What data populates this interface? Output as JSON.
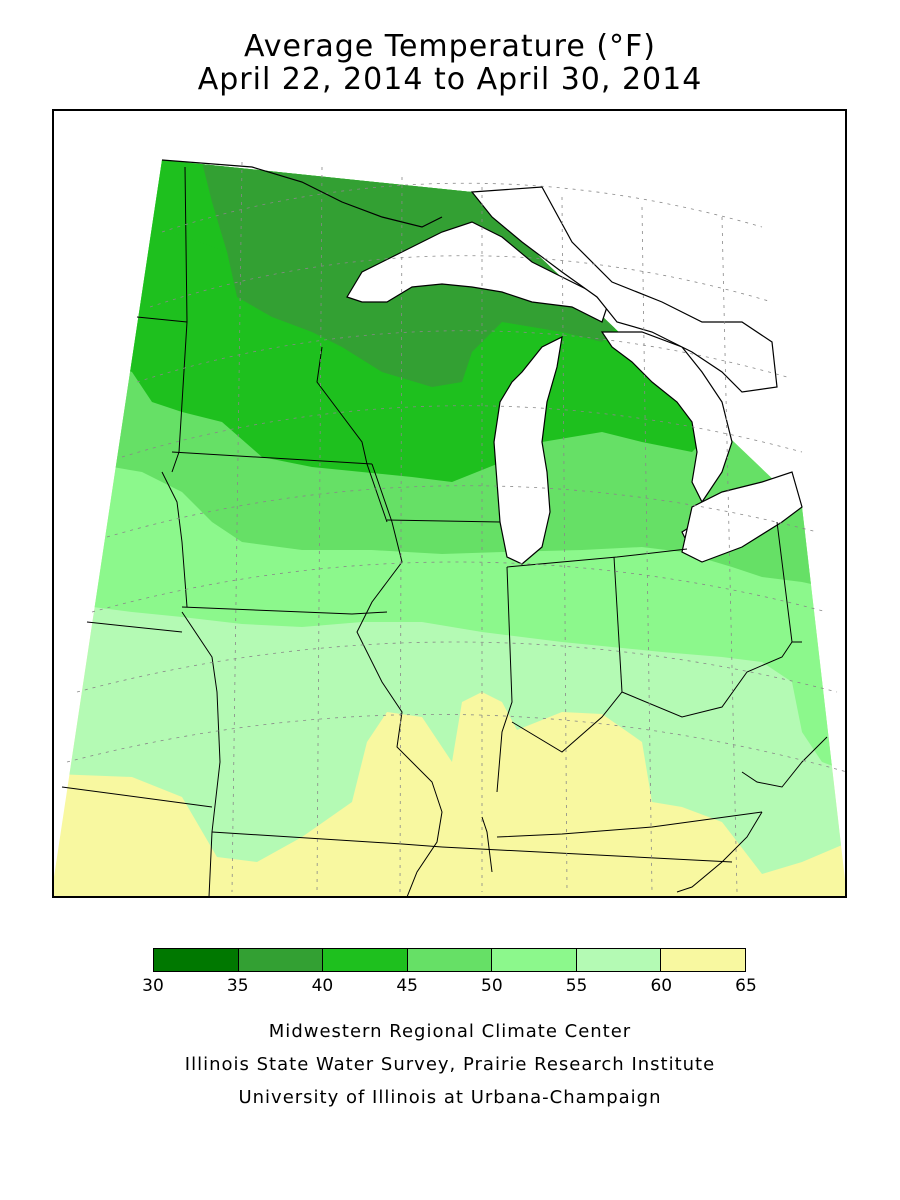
{
  "header": {
    "title_line1": "Average Temperature (°F)",
    "title_line2": "April 22, 2014 to April 30, 2014"
  },
  "map": {
    "variable": "Average Temperature",
    "unit": "°F",
    "zones": [
      {
        "range": "40-45",
        "color": "#33a033"
      },
      {
        "range": "45-50",
        "color": "#1ec01e"
      },
      {
        "range": "50-55",
        "color": "#66e066"
      },
      {
        "range": "55-60",
        "color": "#8cf88c"
      },
      {
        "range": "60-65",
        "color": "#b4fab4"
      },
      {
        "range": "65+",
        "color": "#f8f8a0"
      }
    ]
  },
  "legend": {
    "colors": [
      "#007800",
      "#33a033",
      "#1ec01e",
      "#66e066",
      "#8cf88c",
      "#b4fab4",
      "#f8f8a0"
    ],
    "ticks": [
      "30",
      "35",
      "40",
      "45",
      "50",
      "55",
      "60",
      "65"
    ]
  },
  "credits": {
    "line1": "Midwestern Regional Climate Center",
    "line2": "Illinois State Water Survey, Prairie Research Institute",
    "line3": "University of Illinois at Urbana-Champaign"
  }
}
